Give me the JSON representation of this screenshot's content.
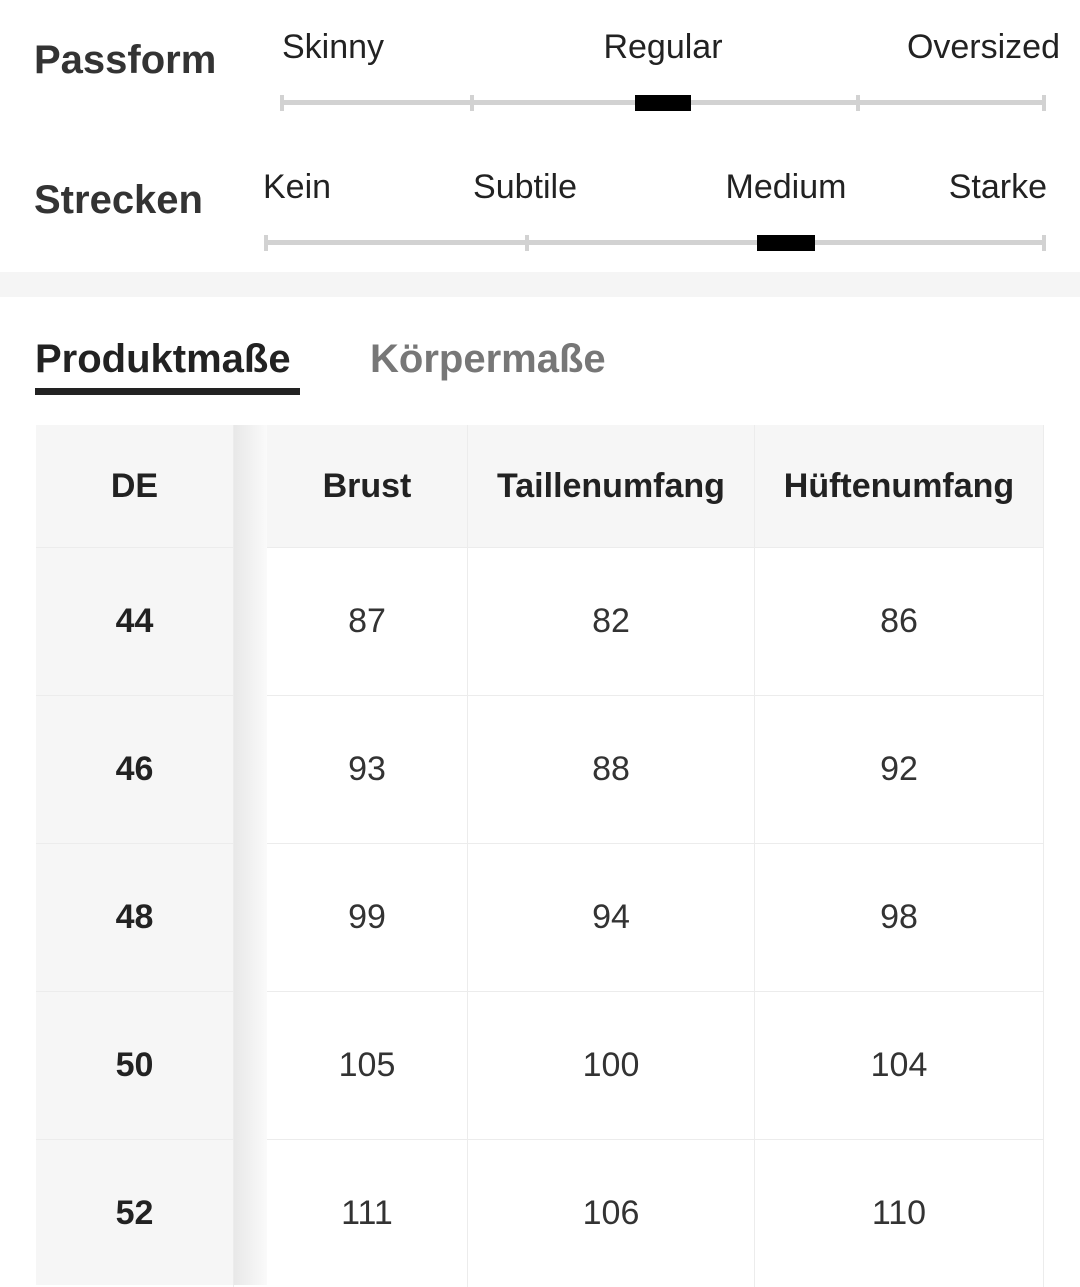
{
  "fit": {
    "label": "Passform",
    "options": [
      "Skinny",
      "Regular",
      "Oversized"
    ],
    "selected": 1
  },
  "stretch": {
    "label": "Strecken",
    "options": [
      "Kein",
      "Subtile",
      "Medium",
      "Starke"
    ],
    "selected": 2
  },
  "tabs": {
    "items": [
      "Produktmaße",
      "Körpermaße"
    ],
    "active": 0
  },
  "table": {
    "header": [
      "DE",
      "Brust",
      "Taillenumfang",
      "Hüftenumfang"
    ],
    "rows": [
      [
        44,
        87,
        82,
        86
      ],
      [
        46,
        93,
        88,
        92
      ],
      [
        48,
        99,
        94,
        98
      ],
      [
        50,
        105,
        100,
        104
      ],
      [
        52,
        111,
        106,
        110
      ]
    ]
  }
}
